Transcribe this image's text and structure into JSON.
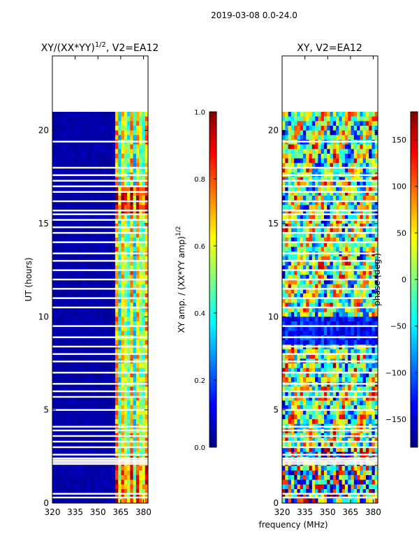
{
  "suptitle": "2019-03-08 0.0-24.0",
  "shared_xlabel": "frequency (MHz)",
  "colors": {
    "jet": [
      "#000080",
      "#0000ff",
      "#0080ff",
      "#00ffff",
      "#80ff80",
      "#ffff00",
      "#ff8000",
      "#ff0000",
      "#800000"
    ],
    "panel_background": "#000080",
    "axis": "#000000"
  },
  "chart_data": [
    {
      "type": "heatmap",
      "title": "XY/(XX*YY)",
      "title_superscript": "1/2",
      "title_suffix": ", V2=EA12",
      "xlabel": "",
      "ylabel": "UT (hours)",
      "xlim": [
        320,
        383
      ],
      "ylim": [
        0,
        24
      ],
      "xticks": [
        320,
        335,
        350,
        365,
        380
      ],
      "yticks": [
        0,
        5,
        10,
        15,
        20
      ],
      "data_extent_hours": [
        0,
        21
      ],
      "bright_channel_range_mhz": [
        361,
        383
      ],
      "colorbar": {
        "label": "XY amp. / (XX*YY amp)",
        "label_superscript": "1/2",
        "range": [
          0.0,
          1.0
        ],
        "ticks": [
          0.0,
          0.2,
          0.4,
          0.6,
          0.8,
          1.0
        ],
        "tick_labels": [
          "0.0",
          "0.2",
          "0.4",
          "0.6",
          "0.8",
          "1.0"
        ]
      }
    },
    {
      "type": "heatmap",
      "title": "XY, V2=EA12",
      "xlabel": "frequency (MHz)",
      "ylabel": "",
      "xlim": [
        320,
        383
      ],
      "ylim": [
        0,
        24
      ],
      "xticks": [
        320,
        335,
        350,
        365,
        380
      ],
      "yticks": [
        0,
        5,
        10,
        15,
        20
      ],
      "data_extent_hours": [
        0,
        21
      ],
      "colorbar": {
        "label": "phase (deg.)",
        "range": [
          -180,
          180
        ],
        "ticks": [
          -150,
          -100,
          -50,
          0,
          50,
          100,
          150
        ],
        "tick_labels": [
          "−150",
          "−100",
          "−50",
          "0",
          "50",
          "100",
          "150"
        ]
      }
    }
  ],
  "gap_rows_hours": [
    0.3,
    0.5,
    2.1,
    2.2,
    2.3,
    2.4,
    2.6,
    3.0,
    3.3,
    3.6,
    3.9,
    4.1,
    5.0,
    5.7,
    6.0,
    6.4,
    7.0,
    7.6,
    8.0,
    8.4,
    8.9,
    9.5,
    10.5,
    11.0,
    11.5,
    12.0,
    12.5,
    13.0,
    13.4,
    14.0,
    14.5,
    14.8,
    15.2,
    15.5,
    15.7,
    16.2,
    16.7,
    17.0,
    17.3,
    17.6,
    18.0,
    19.4
  ]
}
